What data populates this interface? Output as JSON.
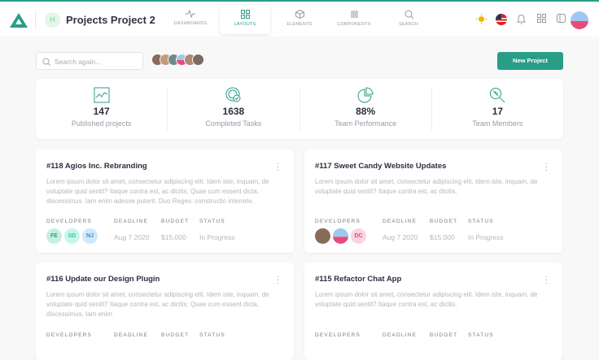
{
  "header": {
    "title": "Projects Project 2",
    "badge": "H",
    "nav": [
      {
        "label": "DASHBOARDS",
        "icon": "activity-icon"
      },
      {
        "label": "LAYOUTS",
        "icon": "grid-icon",
        "active": true
      },
      {
        "label": "ELEMENTS",
        "icon": "cube-icon"
      },
      {
        "label": "COMPONENTS",
        "icon": "chip-icon"
      },
      {
        "label": "SEARCH",
        "icon": "search-icon"
      }
    ]
  },
  "toolbar": {
    "search_placeholder": "Search again...",
    "new_project": "New Project"
  },
  "colors": {
    "accent": "#2a9d87"
  },
  "stats": [
    {
      "value": "147",
      "label": "Published projects"
    },
    {
      "value": "1638",
      "label": "Completed Tasks"
    },
    {
      "value": "88%",
      "label": "Team Performance"
    },
    {
      "value": "17",
      "label": "Team Members"
    }
  ],
  "meta_labels": {
    "developers": "DEVELOPERS",
    "deadline": "DEADLINE",
    "budget": "BUDGET",
    "status": "STATUS"
  },
  "projects": [
    {
      "title": "#118 Agios Inc. Rebranding",
      "desc": "Lorem ipsum dolor sit amet, consectetur adipiscing elit. Idem iste, inquam, de voluptate quid sentit? Itaque contra est, ac dicitis; Quae cum essent dicta, discessimus. Iam enim adesse poterit. Duo Reges: constructio interrete.",
      "developers": [
        "FE",
        "SD",
        "NJ"
      ],
      "deadline": "Aug 7 2020",
      "budget": "$15,000",
      "status": "In Progress"
    },
    {
      "title": "#117 Sweet Candy Website Updates",
      "desc": "Lorem ipsum dolor sit amet, consectetur adipiscing elit. Idem iste, inquam, de voluptate quid sentit? Itaque contra est, ac dicitis.",
      "developers": [
        "",
        "",
        "DC"
      ],
      "deadline": "Aug 7 2020",
      "budget": "$15,000",
      "status": "In Progress"
    },
    {
      "title": "#116 Update our Design Plugin",
      "desc": "Lorem ipsum dolor sit amet, consectetur adipiscing elit. Idem iste, inquam, de voluptate quid sentit? Itaque contra est, ac dicitis; Quae cum essent dicta, discessimus. Iam enim"
    },
    {
      "title": "#115 Refactor Chat App",
      "desc": "Lorem ipsum dolor sit amet, consectetur adipiscing elit. Idem iste, inquam, de voluptate quid sentit? Itaque contra est, ac dicitis."
    }
  ]
}
